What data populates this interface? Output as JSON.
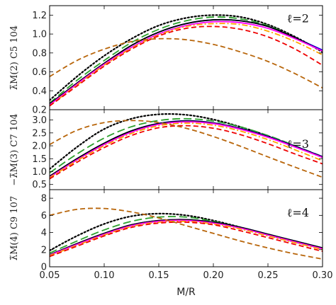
{
  "chart_data": [
    {
      "type": "line",
      "annotation": "ℓ=2",
      "ylabel": "λ̃M(2) C5 104",
      "xlim": [
        0.05,
        0.3
      ],
      "ylim": [
        0.2,
        1.3
      ],
      "yticks": [
        "0.2",
        "0.4",
        "0.6",
        "0.8",
        "1.0",
        "1.2"
      ],
      "x": [
        0.05,
        0.075,
        0.1,
        0.125,
        0.15,
        0.175,
        0.2,
        0.225,
        0.25,
        0.275,
        0.3
      ],
      "series": [
        {
          "color": "#000000",
          "dash": "dotted",
          "values": [
            0.3,
            0.55,
            0.77,
            0.95,
            1.09,
            1.17,
            1.2,
            1.18,
            1.1,
            0.97,
            0.81
          ]
        },
        {
          "color": "#2ca02c",
          "dash": "longdash",
          "values": [
            0.27,
            0.51,
            0.72,
            0.91,
            1.05,
            1.14,
            1.18,
            1.16,
            1.09,
            0.96,
            0.82
          ]
        },
        {
          "color": "#0000ff",
          "dash": "solid",
          "values": [
            0.26,
            0.48,
            0.69,
            0.88,
            1.02,
            1.11,
            1.15,
            1.14,
            1.08,
            0.96,
            0.83
          ]
        },
        {
          "color": "#000000",
          "dash": "solid",
          "values": [
            0.26,
            0.48,
            0.69,
            0.88,
            1.02,
            1.11,
            1.15,
            1.14,
            1.08,
            0.96,
            0.82
          ]
        },
        {
          "color": "#ff00ff",
          "dash": "solid",
          "values": [
            0.25,
            0.47,
            0.68,
            0.86,
            1.0,
            1.09,
            1.13,
            1.12,
            1.06,
            0.95,
            0.82
          ]
        },
        {
          "color": "#ffa500",
          "dash": "dashdot",
          "values": [
            0.24,
            0.46,
            0.67,
            0.85,
            0.99,
            1.08,
            1.11,
            1.1,
            1.03,
            0.92,
            0.78
          ]
        },
        {
          "color": "#ee0000",
          "dash": "dashed",
          "values": [
            0.24,
            0.45,
            0.66,
            0.84,
            0.98,
            1.06,
            1.08,
            1.05,
            0.97,
            0.84,
            0.67
          ]
        },
        {
          "color": "#b8650a",
          "dash": "dashed",
          "values": [
            0.55,
            0.72,
            0.84,
            0.92,
            0.95,
            0.94,
            0.89,
            0.81,
            0.71,
            0.58,
            0.43
          ]
        }
      ]
    },
    {
      "type": "line",
      "annotation": "ℓ=3",
      "ylabel": "−λ̃M(3) C7 104",
      "xlim": [
        0.05,
        0.3
      ],
      "ylim": [
        0.3,
        3.4
      ],
      "yticks": [
        "0.5",
        "1.0",
        "1.5",
        "2.0",
        "2.5",
        "3.0"
      ],
      "x": [
        0.05,
        0.075,
        0.1,
        0.125,
        0.15,
        0.175,
        0.2,
        0.225,
        0.25,
        0.275,
        0.3
      ],
      "series": [
        {
          "color": "#000000",
          "dash": "dotted",
          "values": [
            1.1,
            1.95,
            2.65,
            3.05,
            3.22,
            3.2,
            3.02,
            2.73,
            2.38,
            1.98,
            1.55
          ]
        },
        {
          "color": "#2ca02c",
          "dash": "longdash",
          "values": [
            0.95,
            1.68,
            2.3,
            2.74,
            2.98,
            3.05,
            2.96,
            2.73,
            2.4,
            2.0,
            1.58
          ]
        },
        {
          "color": "#0000ff",
          "dash": "solid",
          "values": [
            0.82,
            1.5,
            2.1,
            2.58,
            2.87,
            2.97,
            2.89,
            2.67,
            2.36,
            1.98,
            1.58
          ]
        },
        {
          "color": "#000000",
          "dash": "solid",
          "values": [
            0.82,
            1.5,
            2.1,
            2.58,
            2.86,
            2.96,
            2.88,
            2.66,
            2.35,
            1.97,
            1.57
          ]
        },
        {
          "color": "#ff00ff",
          "dash": "solid",
          "values": [
            0.78,
            1.45,
            2.05,
            2.53,
            2.83,
            2.93,
            2.86,
            2.64,
            2.33,
            1.95,
            1.55
          ]
        },
        {
          "color": "#ffa500",
          "dash": "dashdot",
          "values": [
            0.76,
            1.42,
            2.0,
            2.48,
            2.78,
            2.88,
            2.8,
            2.57,
            2.24,
            1.84,
            1.42
          ]
        },
        {
          "color": "#ee0000",
          "dash": "dashed",
          "values": [
            0.72,
            1.36,
            1.93,
            2.4,
            2.7,
            2.78,
            2.68,
            2.43,
            2.08,
            1.68,
            1.3
          ]
        },
        {
          "color": "#b8650a",
          "dash": "dashed",
          "values": [
            2.05,
            2.6,
            2.9,
            2.98,
            2.9,
            2.68,
            2.36,
            1.98,
            1.57,
            1.17,
            0.78
          ]
        }
      ]
    },
    {
      "type": "line",
      "annotation": "ℓ=4",
      "ylabel": "λ̃M(4) C9 107",
      "xlabel": "M/R",
      "xlim": [
        0.05,
        0.3
      ],
      "ylim": [
        0,
        9
      ],
      "yticks": [
        "0",
        "2",
        "4",
        "6",
        "8"
      ],
      "xticks": [
        "0.05",
        "0.10",
        "0.15",
        "0.20",
        "0.25",
        "0.30"
      ],
      "x": [
        0.05,
        0.075,
        0.1,
        0.125,
        0.15,
        0.175,
        0.2,
        0.225,
        0.25,
        0.275,
        0.3
      ],
      "series": [
        {
          "color": "#000000",
          "dash": "dotted",
          "values": [
            1.9,
            3.6,
            5.0,
            5.9,
            6.2,
            6.0,
            5.4,
            4.6,
            3.7,
            2.9,
            2.1
          ]
        },
        {
          "color": "#2ca02c",
          "dash": "longdash",
          "values": [
            1.6,
            3.0,
            4.3,
            5.3,
            5.8,
            5.8,
            5.3,
            4.6,
            3.8,
            3.0,
            2.2
          ]
        },
        {
          "color": "#0000ff",
          "dash": "solid",
          "values": [
            1.4,
            2.7,
            3.9,
            4.9,
            5.4,
            5.5,
            5.2,
            4.6,
            3.8,
            3.0,
            2.2
          ]
        },
        {
          "color": "#000000",
          "dash": "solid",
          "values": [
            1.4,
            2.7,
            3.9,
            4.9,
            5.4,
            5.5,
            5.2,
            4.6,
            3.8,
            3.0,
            2.2
          ]
        },
        {
          "color": "#ff00ff",
          "dash": "solid",
          "values": [
            1.35,
            2.6,
            3.8,
            4.8,
            5.3,
            5.4,
            5.1,
            4.5,
            3.7,
            2.9,
            2.1
          ]
        },
        {
          "color": "#ffa500",
          "dash": "dashdot",
          "values": [
            1.3,
            2.5,
            3.7,
            4.7,
            5.2,
            5.3,
            5.0,
            4.4,
            3.6,
            2.8,
            2.0
          ]
        },
        {
          "color": "#ee0000",
          "dash": "dashed",
          "values": [
            1.2,
            2.4,
            3.6,
            4.6,
            5.1,
            5.2,
            4.9,
            4.2,
            3.4,
            2.6,
            1.8
          ]
        },
        {
          "color": "#b8650a",
          "dash": "dashed",
          "values": [
            6.0,
            6.7,
            6.8,
            6.4,
            5.7,
            4.8,
            3.9,
            3.0,
            2.2,
            1.5,
            0.9
          ]
        }
      ]
    }
  ]
}
